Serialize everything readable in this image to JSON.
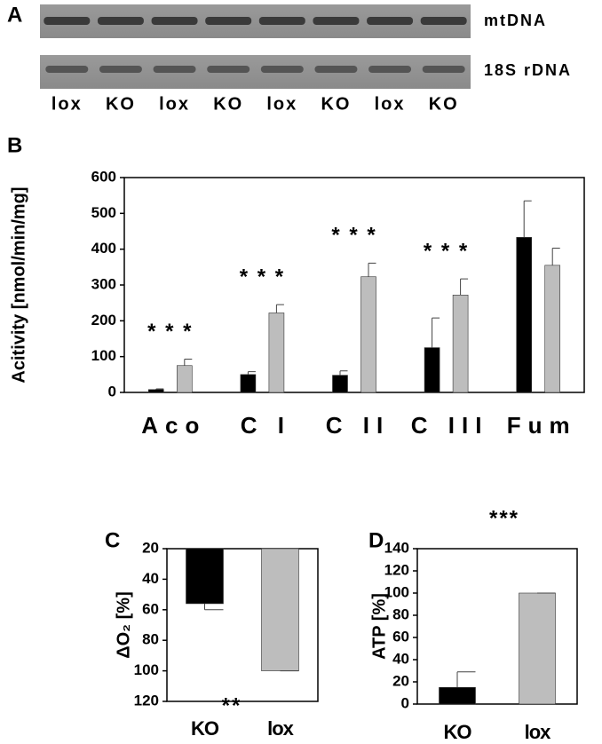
{
  "gel": {
    "panel_label": "A",
    "rows": [
      "mtDNA",
      "18S rDNA"
    ],
    "lanes": [
      "lox",
      "KO",
      "lox",
      "KO",
      "lox",
      "KO",
      "lox",
      "KO"
    ]
  },
  "chart_data": [
    {
      "type": "bar",
      "panel_label": "B",
      "y_label": "Acitivity [nmol/min/mg]",
      "categories": [
        "Aco",
        "C I",
        "C II",
        "C III",
        "Fum"
      ],
      "series": [
        {
          "color": "#000000",
          "values": [
            8,
            50,
            48,
            125,
            433
          ],
          "errors": [
            2,
            8,
            12,
            83,
            102
          ]
        },
        {
          "color": "#bdbdbd",
          "values": [
            75,
            222,
            323,
            272,
            355
          ],
          "errors": [
            18,
            23,
            38,
            45,
            48
          ]
        }
      ],
      "annotations": [
        "* * *",
        "* * *",
        "* * *",
        "* * *",
        null
      ],
      "ylim": [
        0,
        600
      ],
      "yticks": [
        0,
        100,
        200,
        300,
        400,
        500,
        600
      ]
    },
    {
      "type": "bar",
      "panel_label": "C",
      "y_label": "ΔO₂ [%]",
      "categories": [
        "KO",
        "lox"
      ],
      "series": [
        {
          "colors": [
            "#000000",
            "#bdbdbd"
          ],
          "values": [
            56,
            100
          ],
          "errors": [
            4,
            0
          ]
        }
      ],
      "annotation": "**",
      "y_inverted": true,
      "ylim": [
        20,
        120
      ],
      "yticks": [
        20,
        40,
        60,
        80,
        100,
        120
      ]
    },
    {
      "type": "bar",
      "panel_label": "D",
      "y_label": "ATP [%]",
      "categories": [
        "KO",
        "lox"
      ],
      "series": [
        {
          "colors": [
            "#000000",
            "#bdbdbd"
          ],
          "values": [
            15,
            100
          ],
          "errors": [
            14,
            0
          ]
        }
      ],
      "annotation": "***",
      "ylim": [
        0,
        140
      ],
      "yticks": [
        0,
        20,
        40,
        60,
        80,
        100,
        120,
        140
      ]
    }
  ]
}
